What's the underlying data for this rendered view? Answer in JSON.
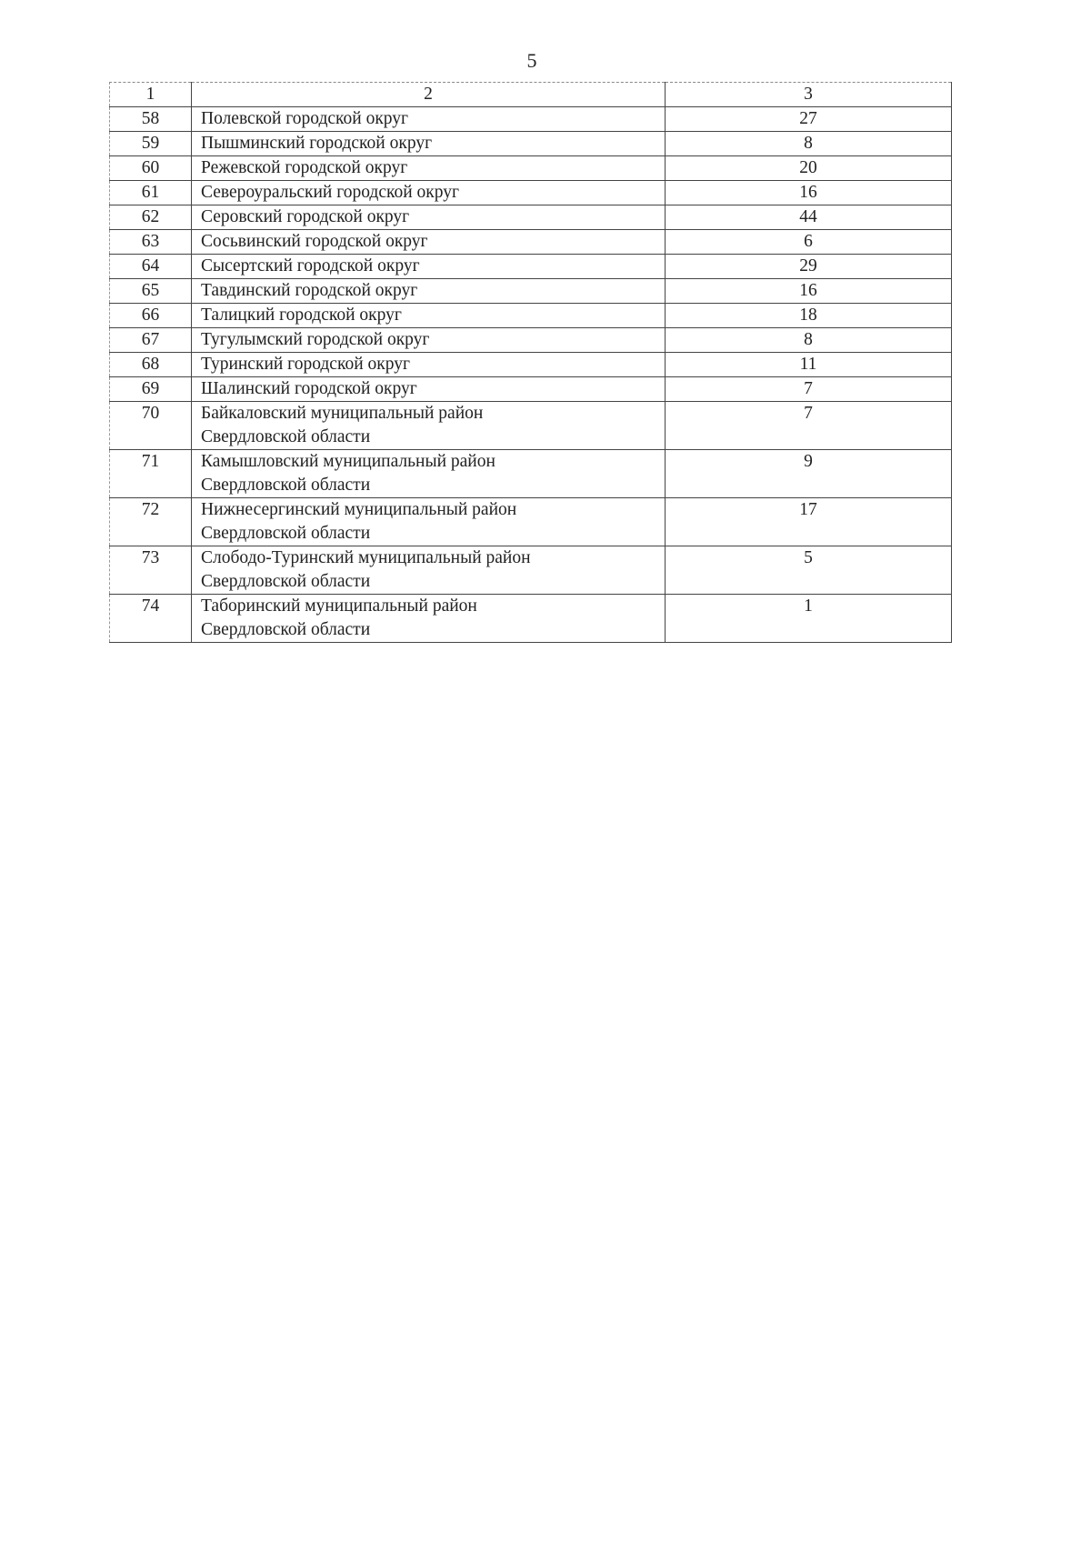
{
  "page_number": "5",
  "table": {
    "header": [
      "1",
      "2",
      "3"
    ],
    "rows": [
      {
        "num": "58",
        "name": [
          "Полевской городской округ"
        ],
        "value": "27"
      },
      {
        "num": "59",
        "name": [
          "Пышминский городской округ"
        ],
        "value": "8"
      },
      {
        "num": "60",
        "name": [
          "Режевской городской округ"
        ],
        "value": "20"
      },
      {
        "num": "61",
        "name": [
          "Североуральский городской округ"
        ],
        "value": "16"
      },
      {
        "num": "62",
        "name": [
          "Серовский городской округ"
        ],
        "value": "44"
      },
      {
        "num": "63",
        "name": [
          "Сосьвинский городской округ"
        ],
        "value": "6"
      },
      {
        "num": "64",
        "name": [
          "Сысертский городской округ"
        ],
        "value": "29"
      },
      {
        "num": "65",
        "name": [
          "Тавдинский городской округ"
        ],
        "value": "16"
      },
      {
        "num": "66",
        "name": [
          "Талицкий городской округ"
        ],
        "value": "18"
      },
      {
        "num": "67",
        "name": [
          "Тугулымский городской округ"
        ],
        "value": "8"
      },
      {
        "num": "68",
        "name": [
          "Туринский городской округ"
        ],
        "value": "11"
      },
      {
        "num": "69",
        "name": [
          "Шалинский городской округ"
        ],
        "value": "7"
      },
      {
        "num": "70",
        "name": [
          "Байкаловский муниципальный район",
          "Свердловской области"
        ],
        "value": "7"
      },
      {
        "num": "71",
        "name": [
          "Камышловский муниципальный район",
          "Свердловской области"
        ],
        "value": "9"
      },
      {
        "num": "72",
        "name": [
          "Нижнесергинский муниципальный район",
          "Свердловской области"
        ],
        "value": "17"
      },
      {
        "num": "73",
        "name": [
          "Слободо-Туринский муниципальный район",
          "Свердловской области"
        ],
        "value": "5"
      },
      {
        "num": "74",
        "name": [
          "Таборинский муниципальный район",
          "Свердловской области"
        ],
        "value": "1"
      }
    ]
  }
}
